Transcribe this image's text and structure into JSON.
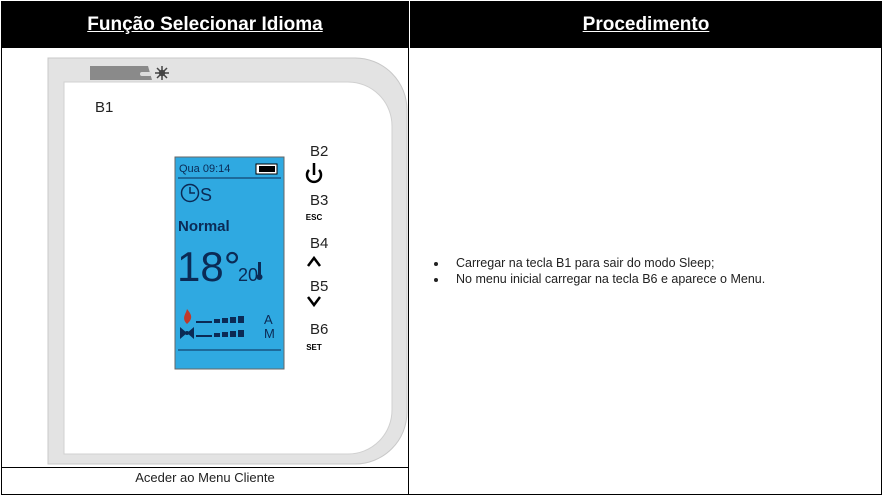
{
  "header": {
    "left": "Função Selecionar Idioma",
    "right": "Procedimento"
  },
  "device": {
    "buttons": [
      "B1",
      "B2",
      "B3",
      "B4",
      "B5",
      "B6"
    ],
    "button_keys": {
      "b3": "ESC",
      "b6": "SET"
    },
    "screen": {
      "time": "Qua 09:14",
      "mode": "S",
      "status": "Normal",
      "temperature": "18°",
      "setpoint": "20",
      "flame_mode": "A",
      "fan_mode": "M"
    }
  },
  "caption": "Aceder ao Menu Cliente",
  "procedure": [
    "Carregar na tecla B1 para sair do modo Sleep;",
    "No menu inicial carregar na tecla B6 e aparece o Menu."
  ]
}
